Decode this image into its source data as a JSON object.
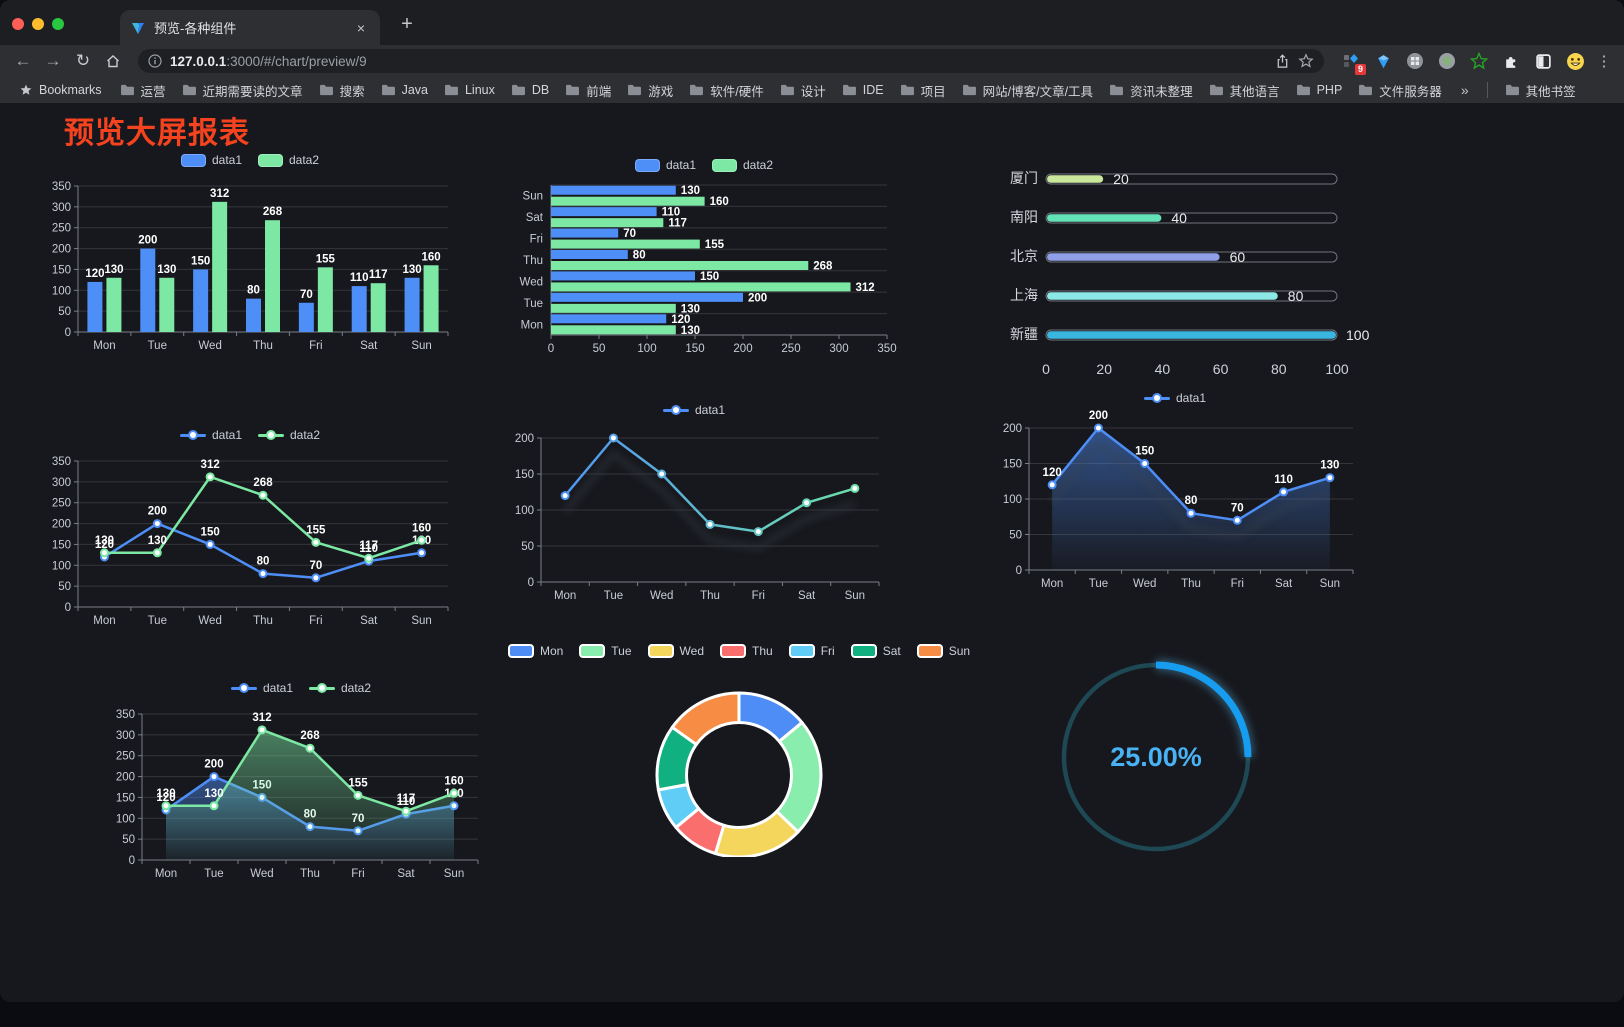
{
  "browser": {
    "tab": {
      "title": "预览-各种组件",
      "close_glyph": "×",
      "new_tab_glyph": "+"
    },
    "url_host": "127.0.0.1",
    "url_rest": ":3000/#/chart/preview/9",
    "bookmarks_label": "Bookmarks",
    "bookmarks": [
      "运营",
      "近期需要读的文章",
      "搜索",
      "Java",
      "Linux",
      "DB",
      "前端",
      "游戏",
      "软件/硬件",
      "设计",
      "IDE",
      "项目",
      "网站/博客/文章/工具",
      "资讯未整理",
      "其他语言",
      "PHP",
      "文件服务器"
    ],
    "bookmarks_overflow": "»",
    "other_bookmarks": "其他书签",
    "extensions": [
      {
        "name": "proxy-extension",
        "badge": "9"
      },
      {
        "name": "gem-extension"
      },
      {
        "name": "grid-circle-extension"
      },
      {
        "name": "record-circle-extension"
      },
      {
        "name": "green-star-extension"
      },
      {
        "name": "puzzle-extension"
      },
      {
        "name": "contrast-extension"
      },
      {
        "name": "emoji-extension"
      }
    ],
    "menu_glyph": "⋮"
  },
  "page": {
    "title": "预览大屏报表",
    "title_color": "#f5421f"
  },
  "chart_data": [
    {
      "type": "bar",
      "categories": [
        "Mon",
        "Tue",
        "Wed",
        "Thu",
        "Fri",
        "Sat",
        "Sun"
      ],
      "series": [
        {
          "name": "data1",
          "color": "#4e8ef7",
          "values": [
            120,
            200,
            150,
            80,
            70,
            110,
            130
          ]
        },
        {
          "name": "data2",
          "color": "#7ce8a4",
          "values": [
            130,
            130,
            312,
            268,
            155,
            117,
            160
          ]
        }
      ],
      "ylim": [
        0,
        350
      ],
      "ystep": 50,
      "grid": true,
      "legend_position": "top"
    },
    {
      "type": "hbar",
      "categories": [
        "Sun",
        "Sat",
        "Fri",
        "Thu",
        "Wed",
        "Tue",
        "Mon"
      ],
      "series": [
        {
          "name": "data1",
          "color": "#4e8ef7",
          "values": [
            130,
            110,
            70,
            80,
            150,
            200,
            120
          ]
        },
        {
          "name": "data2",
          "color": "#7ce8a4",
          "values": [
            160,
            117,
            155,
            268,
            312,
            130,
            130
          ]
        }
      ],
      "xlim": [
        0,
        350
      ],
      "xstep": 50,
      "grid": true,
      "legend_position": "top"
    },
    {
      "type": "progress",
      "items": [
        {
          "label": "厦门",
          "value": 20,
          "color": "#c9e69b"
        },
        {
          "label": "南阳",
          "value": 40,
          "color": "#63e2b7"
        },
        {
          "label": "北京",
          "value": 60,
          "color": "#8f9fe8"
        },
        {
          "label": "上海",
          "value": 80,
          "color": "#8ce8e5"
        },
        {
          "label": "新疆",
          "value": 100,
          "color": "#3ab5e0"
        }
      ],
      "max": 100,
      "ticks": [
        0,
        20,
        40,
        60,
        80,
        100
      ]
    },
    {
      "type": "line",
      "categories": [
        "Mon",
        "Tue",
        "Wed",
        "Thu",
        "Fri",
        "Sat",
        "Sun"
      ],
      "series": [
        {
          "name": "data1",
          "color": "#4e8ef7",
          "values": [
            120,
            200,
            150,
            80,
            70,
            110,
            130
          ]
        },
        {
          "name": "data2",
          "color": "#7ce8a4",
          "values": [
            130,
            130,
            312,
            268,
            155,
            117,
            160
          ]
        }
      ],
      "ylim": [
        0,
        350
      ],
      "ystep": 50,
      "show_labels": true,
      "grid": true,
      "legend_position": "top"
    },
    {
      "type": "line",
      "categories": [
        "Mon",
        "Tue",
        "Wed",
        "Thu",
        "Fri",
        "Sat",
        "Sun"
      ],
      "series": [
        {
          "name": "data1",
          "color": "#4e8ef7",
          "values": [
            120,
            200,
            150,
            80,
            70,
            110,
            130
          ]
        }
      ],
      "ylim": [
        0,
        200
      ],
      "ystep": 50,
      "show_labels": false,
      "gradient_stroke": true,
      "gradient_to": "#6fe6a3",
      "shadow": true,
      "grid": true,
      "legend_position": "top"
    },
    {
      "type": "line",
      "categories": [
        "Mon",
        "Tue",
        "Wed",
        "Thu",
        "Fri",
        "Sat",
        "Sun"
      ],
      "series": [
        {
          "name": "data1",
          "color": "#4e8ef7",
          "values": [
            120,
            200,
            150,
            80,
            70,
            110,
            130
          ]
        }
      ],
      "ylim": [
        0,
        200
      ],
      "ystep": 50,
      "show_labels": true,
      "area": true,
      "shadow": true,
      "grid": true,
      "legend_position": "top"
    },
    {
      "type": "line",
      "categories": [
        "Mon",
        "Tue",
        "Wed",
        "Thu",
        "Fri",
        "Sat",
        "Sun"
      ],
      "series": [
        {
          "name": "data1",
          "color": "#4e8ef7",
          "values": [
            120,
            200,
            150,
            80,
            70,
            110,
            130
          ]
        },
        {
          "name": "data2",
          "color": "#7ce8a4",
          "values": [
            130,
            130,
            312,
            268,
            155,
            117,
            160
          ]
        }
      ],
      "ylim": [
        0,
        350
      ],
      "ystep": 50,
      "show_labels": true,
      "area": true,
      "grid": true,
      "legend_position": "top"
    },
    {
      "type": "pie",
      "categories": [
        "Mon",
        "Tue",
        "Wed",
        "Thu",
        "Fri",
        "Sat",
        "Sun"
      ],
      "values": [
        120,
        200,
        150,
        80,
        70,
        110,
        130
      ],
      "colors": [
        "#4e8df5",
        "#88edad",
        "#f5d65c",
        "#fa6e6e",
        "#5fcdf5",
        "#10b080",
        "#f78c45"
      ],
      "inner_radius_ratio": 0.64,
      "legend_position": "top"
    },
    {
      "type": "gauge",
      "value": 25,
      "max": 100,
      "label": "25.00%",
      "arc_color": "#169df0",
      "track_color": "#1d4854",
      "text_color": "#49b2f4"
    }
  ]
}
